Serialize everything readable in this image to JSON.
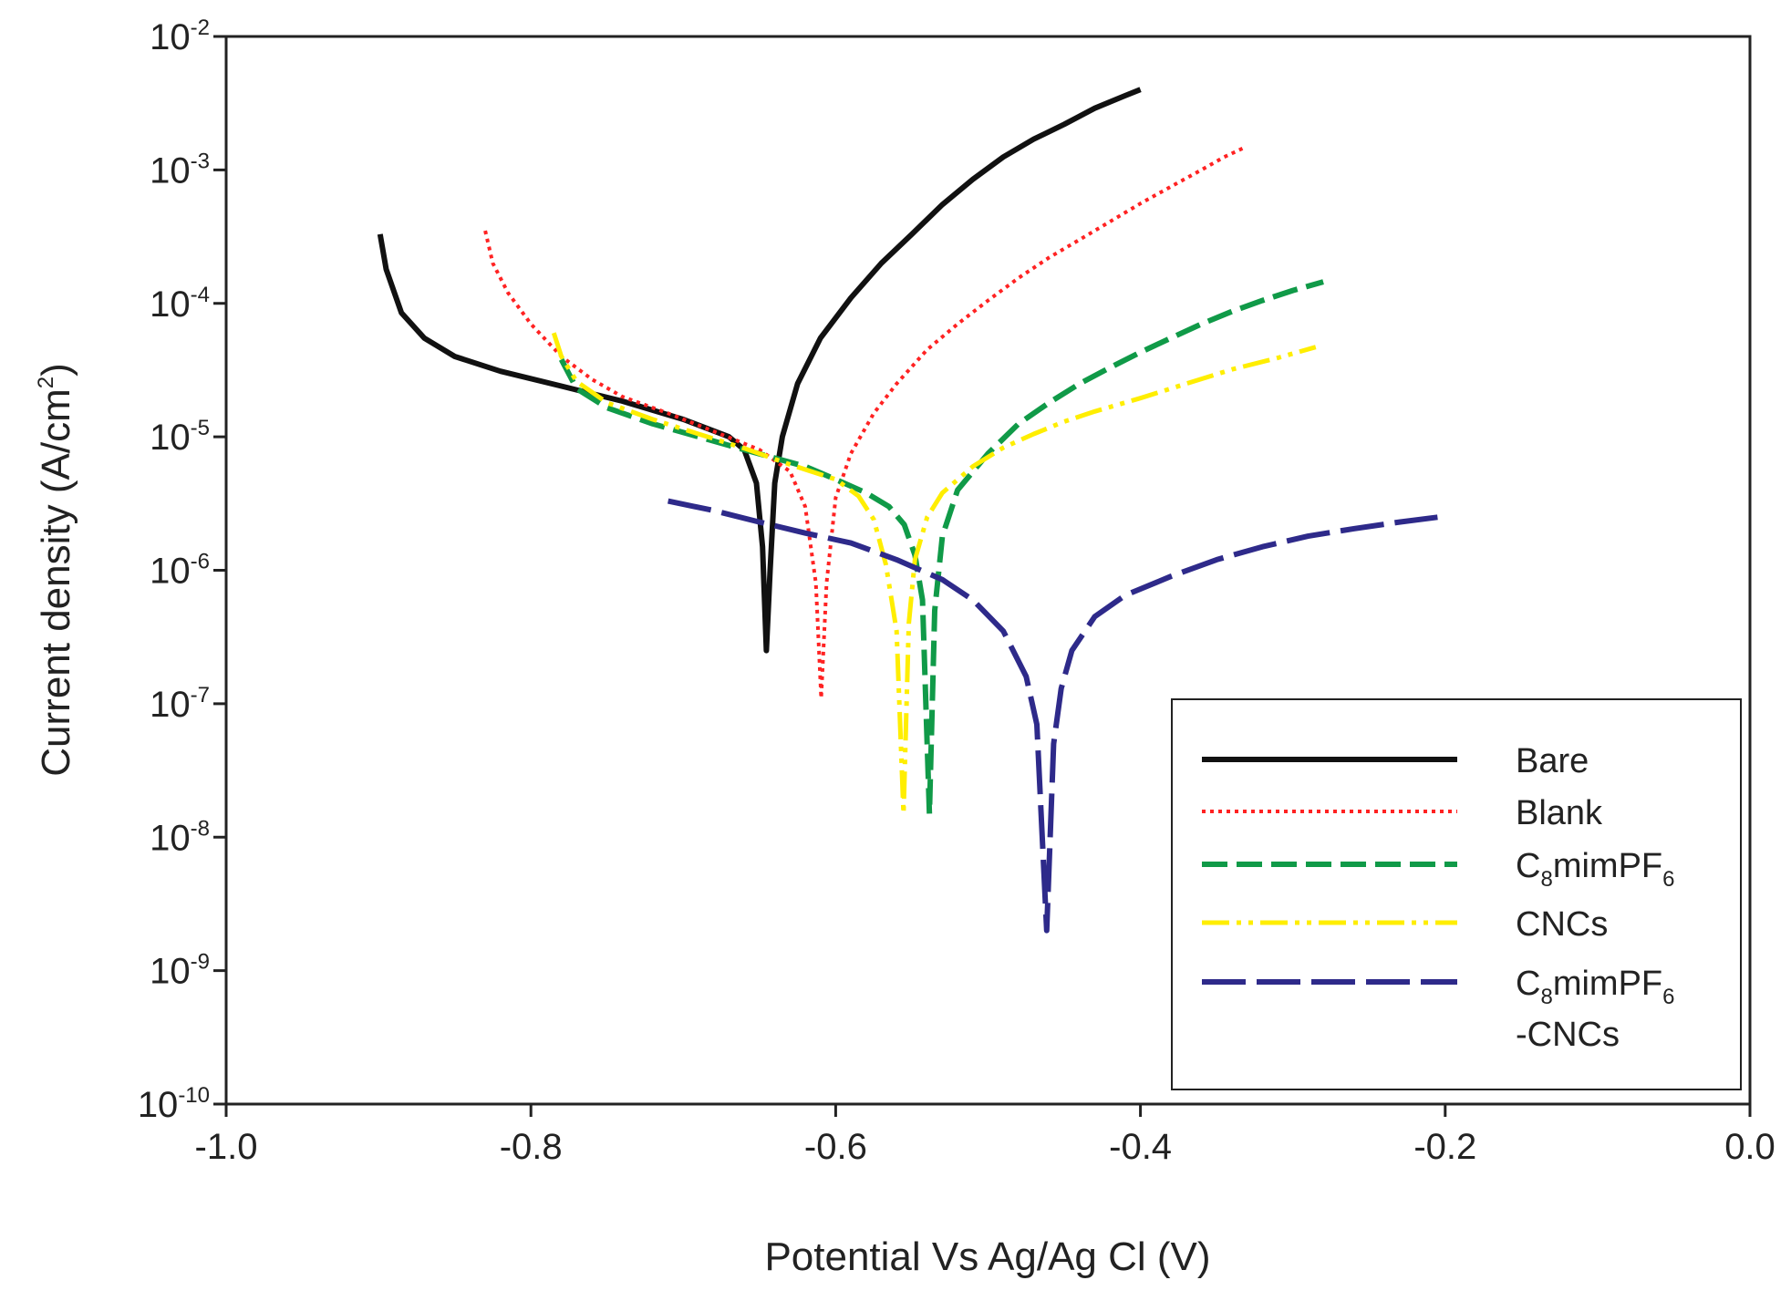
{
  "chart_data": {
    "type": "line",
    "y_scale": "log",
    "xlabel": "Potential Vs Ag/Ag Cl (V)",
    "ylabel": {
      "main": "Current density  (A/cm",
      "sup": "2",
      "end": ")"
    },
    "xlim": [
      -1.0,
      0.0
    ],
    "ylim": [
      1e-10,
      0.01
    ],
    "x_ticks": [
      -1.0,
      -0.8,
      -0.6,
      -0.4,
      -0.2,
      0.0
    ],
    "x_tick_labels": [
      "-1.0",
      "-0.8",
      "-0.6",
      "-0.4",
      "-0.2",
      "0.0"
    ],
    "y_ticks": [
      {
        "base": "10",
        "exp": "-2",
        "value": 0.01
      },
      {
        "base": "10",
        "exp": "-3",
        "value": 0.001
      },
      {
        "base": "10",
        "exp": "-4",
        "value": 0.0001
      },
      {
        "base": "10",
        "exp": "-5",
        "value": 1e-05
      },
      {
        "base": "10",
        "exp": "-6",
        "value": 1e-06
      },
      {
        "base": "10",
        "exp": "-7",
        "value": 1e-07
      },
      {
        "base": "10",
        "exp": "-8",
        "value": 1e-08
      },
      {
        "base": "10",
        "exp": "-9",
        "value": 1e-09
      },
      {
        "base": "10",
        "exp": "-10",
        "value": 1e-10
      }
    ],
    "series": [
      {
        "name": "Bare",
        "legend": [
          {
            "t": "Bare"
          }
        ],
        "color": "#111111",
        "dash": "",
        "width": 6,
        "points": [
          [
            -0.899,
            0.00033
          ],
          [
            -0.895,
            0.00018
          ],
          [
            -0.885,
            8.5e-05
          ],
          [
            -0.87,
            5.5e-05
          ],
          [
            -0.85,
            4e-05
          ],
          [
            -0.82,
            3.1e-05
          ],
          [
            -0.78,
            2.4e-05
          ],
          [
            -0.74,
            1.85e-05
          ],
          [
            -0.7,
            1.35e-05
          ],
          [
            -0.67,
            1e-05
          ],
          [
            -0.66,
            8e-06
          ],
          [
            -0.652,
            4.5e-06
          ],
          [
            -0.648,
            1.5e-06
          ],
          [
            -0.6455,
            2.5e-07
          ],
          [
            -0.643,
            1e-06
          ],
          [
            -0.64,
            4.5e-06
          ],
          [
            -0.635,
            1e-05
          ],
          [
            -0.625,
            2.5e-05
          ],
          [
            -0.61,
            5.5e-05
          ],
          [
            -0.59,
            0.00011
          ],
          [
            -0.57,
            0.0002
          ],
          [
            -0.55,
            0.00033
          ],
          [
            -0.53,
            0.00055
          ],
          [
            -0.51,
            0.00085
          ],
          [
            -0.49,
            0.00125
          ],
          [
            -0.47,
            0.0017
          ],
          [
            -0.45,
            0.0022
          ],
          [
            -0.43,
            0.0029
          ],
          [
            -0.41,
            0.0036
          ],
          [
            -0.4,
            0.004
          ]
        ]
      },
      {
        "name": "Blank",
        "legend": [
          {
            "t": "Blank"
          }
        ],
        "color": "#ff2222",
        "dash": "4 5",
        "width": 4,
        "points": [
          [
            -0.83,
            0.00035
          ],
          [
            -0.825,
            0.0002
          ],
          [
            -0.815,
            0.00012
          ],
          [
            -0.8,
            7e-05
          ],
          [
            -0.78,
            4e-05
          ],
          [
            -0.76,
            2.7e-05
          ],
          [
            -0.74,
            2e-05
          ],
          [
            -0.71,
            1.5e-05
          ],
          [
            -0.68,
            1.1e-05
          ],
          [
            -0.65,
            8e-06
          ],
          [
            -0.63,
            5.5e-06
          ],
          [
            -0.62,
            3e-06
          ],
          [
            -0.613,
            8e-07
          ],
          [
            -0.6095,
            1.1e-07
          ],
          [
            -0.606,
            8e-07
          ],
          [
            -0.6,
            3.5e-06
          ],
          [
            -0.59,
            7.5e-06
          ],
          [
            -0.575,
            1.5e-05
          ],
          [
            -0.56,
            2.5e-05
          ],
          [
            -0.54,
            4.5e-05
          ],
          [
            -0.52,
            7e-05
          ],
          [
            -0.5,
            0.000105
          ],
          [
            -0.48,
            0.000155
          ],
          [
            -0.46,
            0.00022
          ],
          [
            -0.44,
            0.0003
          ],
          [
            -0.42,
            0.00041
          ],
          [
            -0.4,
            0.00056
          ],
          [
            -0.38,
            0.00075
          ],
          [
            -0.36,
            0.001
          ],
          [
            -0.345,
            0.00125
          ],
          [
            -0.333,
            0.00145
          ]
        ]
      },
      {
        "name": "C8mimPF6",
        "legend": [
          {
            "t": "C"
          },
          {
            "t": "8",
            "sub": true
          },
          {
            "t": "mimPF"
          },
          {
            "t": "6",
            "sub": true
          }
        ],
        "color": "#109a48",
        "dash": "28 10",
        "width": 6,
        "points": [
          [
            -0.78,
            3.8e-05
          ],
          [
            -0.77,
            2.3e-05
          ],
          [
            -0.75,
            1.65e-05
          ],
          [
            -0.72,
            1.25e-05
          ],
          [
            -0.69,
            1e-05
          ],
          [
            -0.66,
            8e-06
          ],
          [
            -0.62,
            6e-06
          ],
          [
            -0.6,
            4.8e-06
          ],
          [
            -0.58,
            3.8e-06
          ],
          [
            -0.565,
            3e-06
          ],
          [
            -0.555,
            2.2e-06
          ],
          [
            -0.548,
            1.3e-06
          ],
          [
            -0.543,
            6e-07
          ],
          [
            -0.5385,
            1.5e-08
          ],
          [
            -0.535,
            5e-07
          ],
          [
            -0.53,
            1.8e-06
          ],
          [
            -0.52,
            4e-06
          ],
          [
            -0.5,
            7.5e-06
          ],
          [
            -0.48,
            1.25e-05
          ],
          [
            -0.46,
            1.8e-05
          ],
          [
            -0.44,
            2.5e-05
          ],
          [
            -0.42,
            3.3e-05
          ],
          [
            -0.4,
            4.3e-05
          ],
          [
            -0.38,
            5.5e-05
          ],
          [
            -0.36,
            7e-05
          ],
          [
            -0.34,
            8.7e-05
          ],
          [
            -0.32,
            0.000105
          ],
          [
            -0.3,
            0.000125
          ],
          [
            -0.28,
            0.000145
          ]
        ]
      },
      {
        "name": "CNCs",
        "legend": [
          {
            "t": "CNCs"
          }
        ],
        "color": "#ffee00",
        "dash": "30 8 5 8 5 8",
        "width": 5,
        "points": [
          [
            -0.785,
            6e-05
          ],
          [
            -0.78,
            4e-05
          ],
          [
            -0.77,
            2.6e-05
          ],
          [
            -0.75,
            1.8e-05
          ],
          [
            -0.72,
            1.35e-05
          ],
          [
            -0.69,
            1.05e-05
          ],
          [
            -0.66,
            8.2e-06
          ],
          [
            -0.63,
            6.2e-06
          ],
          [
            -0.6,
            4.8e-06
          ],
          [
            -0.585,
            3.6e-06
          ],
          [
            -0.575,
            2.4e-06
          ],
          [
            -0.567,
            1.1e-06
          ],
          [
            -0.56,
            3.5e-07
          ],
          [
            -0.5555,
            1.5e-08
          ],
          [
            -0.552,
            4e-07
          ],
          [
            -0.548,
            1.2e-06
          ],
          [
            -0.54,
            2.5e-06
          ],
          [
            -0.53,
            3.8e-06
          ],
          [
            -0.51,
            6e-06
          ],
          [
            -0.49,
            8.3e-06
          ],
          [
            -0.47,
            1.05e-05
          ],
          [
            -0.45,
            1.3e-05
          ],
          [
            -0.43,
            1.55e-05
          ],
          [
            -0.4,
            1.95e-05
          ],
          [
            -0.37,
            2.5e-05
          ],
          [
            -0.34,
            3.2e-05
          ],
          [
            -0.31,
            3.9e-05
          ],
          [
            -0.285,
            4.7e-05
          ]
        ]
      },
      {
        "name": "C8mimPF6-CNCs",
        "legend": [
          {
            "t": "C"
          },
          {
            "t": "8",
            "sub": true
          },
          {
            "t": "mimPF"
          },
          {
            "t": "6",
            "sub": true
          }
        ],
        "legend2": "-CNCs",
        "color": "#2e2a8a",
        "dash": "48 12",
        "width": 6,
        "points": [
          [
            -0.71,
            3.3e-06
          ],
          [
            -0.68,
            2.8e-06
          ],
          [
            -0.65,
            2.3e-06
          ],
          [
            -0.62,
            1.9e-06
          ],
          [
            -0.59,
            1.6e-06
          ],
          [
            -0.56,
            1.2e-06
          ],
          [
            -0.53,
            8.5e-07
          ],
          [
            -0.51,
            6e-07
          ],
          [
            -0.49,
            3.5e-07
          ],
          [
            -0.475,
            1.6e-07
          ],
          [
            -0.468,
            7e-08
          ],
          [
            -0.4615,
            2e-09
          ],
          [
            -0.457,
            5e-08
          ],
          [
            -0.452,
            1.3e-07
          ],
          [
            -0.445,
            2.5e-07
          ],
          [
            -0.43,
            4.5e-07
          ],
          [
            -0.41,
            6.5e-07
          ],
          [
            -0.38,
            9e-07
          ],
          [
            -0.35,
            1.2e-06
          ],
          [
            -0.32,
            1.5e-06
          ],
          [
            -0.29,
            1.8e-06
          ],
          [
            -0.26,
            2.05e-06
          ],
          [
            -0.23,
            2.3e-06
          ],
          [
            -0.205,
            2.5e-06
          ]
        ]
      }
    ]
  }
}
